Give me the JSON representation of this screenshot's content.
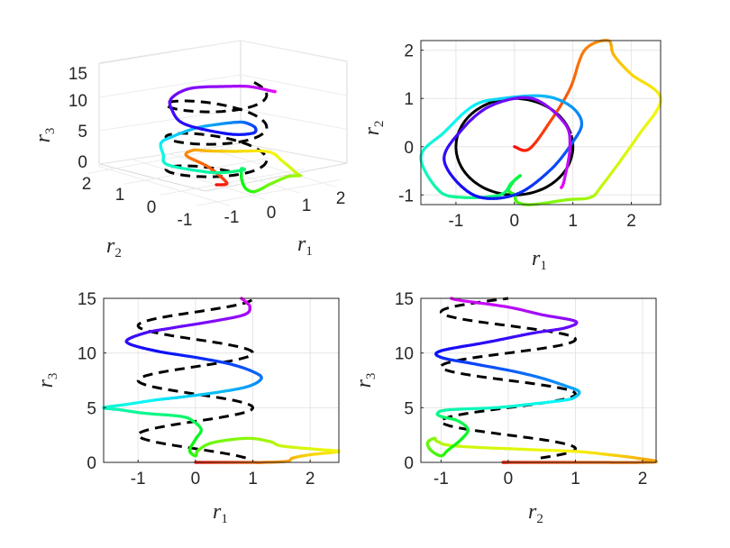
{
  "chart_data": [
    {
      "type": "line",
      "view": "3d",
      "xlabel": "r1",
      "ylabel": "r2",
      "zlabel": "r3",
      "xticks": [
        "-1",
        "0",
        "1",
        "2"
      ],
      "yticks": [
        "2",
        "1",
        "0",
        "-1"
      ],
      "zticks": [
        "15",
        "10",
        "5",
        "0"
      ],
      "xlim": [
        -1.6,
        2.5
      ],
      "ylim": [
        -1.2,
        2.2
      ],
      "zlim": [
        0,
        15
      ],
      "grid": true
    },
    {
      "type": "line",
      "xlabel": "r1",
      "ylabel": "r2",
      "xticks": [
        "-1",
        "0",
        "1",
        "2"
      ],
      "yticks": [
        "2",
        "1",
        "0",
        "-1"
      ],
      "xlim": [
        -1.6,
        2.5
      ],
      "ylim": [
        -1.2,
        2.2
      ],
      "grid": true
    },
    {
      "type": "line",
      "xlabel": "r1",
      "ylabel": "r3",
      "xticks": [
        "-1",
        "0",
        "1",
        "2"
      ],
      "yticks": [
        "15",
        "10",
        "5",
        "0"
      ],
      "xlim": [
        -1.6,
        2.5
      ],
      "ylim": [
        0,
        15
      ],
      "grid": true
    },
    {
      "type": "line",
      "xlabel": "r2",
      "ylabel": "r3",
      "xticks": [
        "-1",
        "0",
        "1",
        "2"
      ],
      "yticks": [
        "15",
        "10",
        "5",
        "0"
      ],
      "xlim": [
        -1.3,
        2.2
      ],
      "ylim": [
        0,
        15
      ],
      "grid": true
    }
  ],
  "series": {
    "reference_helix": {
      "style": "dashed",
      "color": "#000000",
      "t_range": [
        0.4,
        15
      ],
      "r1": "cos(2*pi*t/5)",
      "r2": "sin(2*pi*t/5)",
      "r3": "t"
    },
    "trajectory": {
      "style": "solid",
      "colormap": "hsv",
      "points": [
        [
          0.0,
          0.0,
          0.0
        ],
        [
          0.25,
          -0.05,
          0.0
        ],
        [
          0.6,
          0.5,
          0.0
        ],
        [
          0.95,
          1.2,
          0.0
        ],
        [
          1.2,
          2.0,
          0.0
        ],
        [
          1.6,
          2.2,
          0.1
        ],
        [
          1.7,
          1.9,
          0.4
        ],
        [
          2.0,
          1.5,
          0.7
        ],
        [
          2.5,
          1.0,
          1.0
        ],
        [
          2.1,
          0.2,
          1.2
        ],
        [
          1.5,
          -0.8,
          1.5
        ],
        [
          1.3,
          -1.05,
          1.9
        ],
        [
          0.9,
          -1.1,
          2.2
        ],
        [
          0.3,
          -1.2,
          1.8
        ],
        [
          0.05,
          -1.15,
          1.1
        ],
        [
          0.0,
          -1.0,
          0.6
        ],
        [
          -0.1,
          -0.9,
          1.1
        ],
        [
          0.0,
          -0.7,
          2.1
        ],
        [
          0.1,
          -0.6,
          3.0
        ],
        [
          -0.05,
          -0.75,
          3.8
        ],
        [
          -0.25,
          -1.0,
          4.2
        ],
        [
          -0.9,
          -1.05,
          4.5
        ],
        [
          -1.3,
          -0.9,
          4.8
        ],
        [
          -1.6,
          -0.2,
          5.0
        ],
        [
          -1.2,
          0.3,
          5.3
        ],
        [
          -0.7,
          0.85,
          5.7
        ],
        [
          -0.2,
          1.0,
          6.0
        ],
        [
          0.5,
          1.05,
          6.5
        ],
        [
          0.95,
          0.85,
          7.0
        ],
        [
          1.15,
          0.5,
          7.7
        ],
        [
          1.0,
          0.1,
          8.3
        ],
        [
          0.6,
          -0.5,
          9.0
        ],
        [
          0.0,
          -1.0,
          9.6
        ],
        [
          -0.7,
          -1.0,
          10.2
        ],
        [
          -1.2,
          -0.3,
          11.0
        ],
        [
          -0.9,
          0.35,
          11.8
        ],
        [
          -0.4,
          0.85,
          12.3
        ],
        [
          0.3,
          1.0,
          12.9
        ],
        [
          0.85,
          0.5,
          13.5
        ],
        [
          0.95,
          0.0,
          14.2
        ],
        [
          0.85,
          -0.7,
          14.8
        ],
        [
          0.8,
          -0.85,
          15.0
        ]
      ]
    }
  }
}
